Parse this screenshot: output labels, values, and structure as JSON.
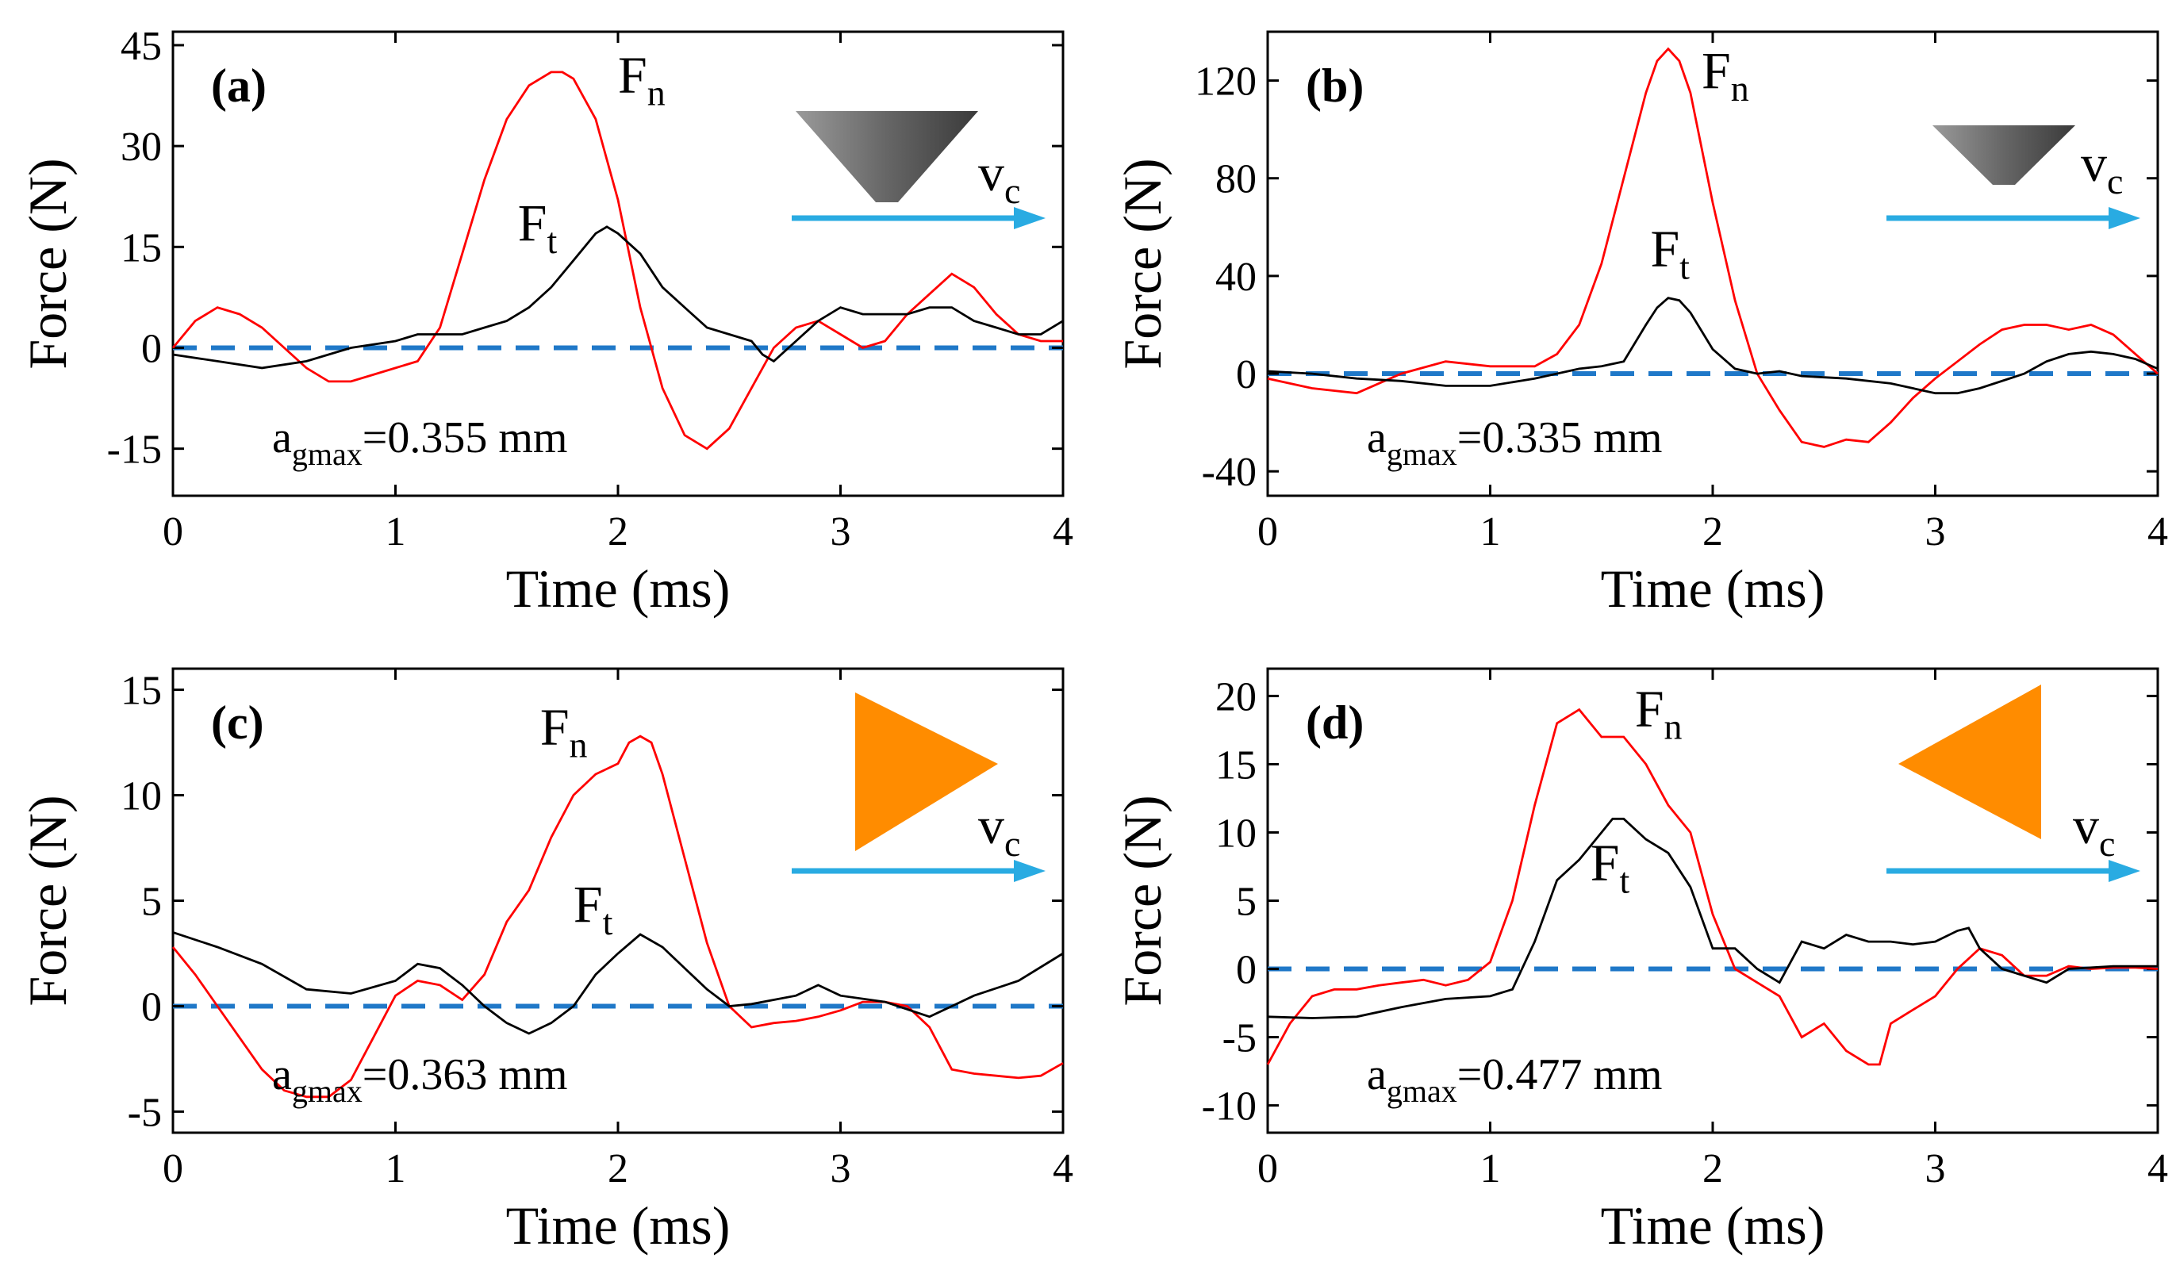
{
  "colors": {
    "fn": "#ff0000",
    "ft": "#000000",
    "zero_line": "#1f78c8",
    "arrow": "#29abe2",
    "cone": "#666666",
    "triangle": "#ff8c00"
  },
  "chart_data": [
    {
      "type": "line",
      "panel_label": "(a)",
      "xlabel": "Time (ms)",
      "ylabel": "Force (N)",
      "xlim": [
        0,
        4
      ],
      "ylim": [
        -22,
        47
      ],
      "xticks": [
        0,
        1,
        2,
        3,
        4
      ],
      "yticks": [
        -15,
        0,
        15,
        30,
        45
      ],
      "tool_icon": "cone-icon",
      "velocity_label": {
        "main": "v",
        "sub": "c"
      },
      "note": {
        "main": "a",
        "sub": "gmax",
        "rest": "=0.355 mm"
      },
      "series": [
        {
          "name": "F",
          "sub": "n",
          "color": "#ff0000",
          "x": [
            0,
            0.1,
            0.2,
            0.3,
            0.4,
            0.5,
            0.6,
            0.7,
            0.8,
            0.9,
            1.0,
            1.1,
            1.2,
            1.3,
            1.4,
            1.5,
            1.6,
            1.7,
            1.75,
            1.8,
            1.9,
            2.0,
            2.1,
            2.2,
            2.3,
            2.4,
            2.5,
            2.6,
            2.7,
            2.8,
            2.9,
            3.0,
            3.1,
            3.2,
            3.3,
            3.4,
            3.5,
            3.6,
            3.7,
            3.8,
            3.9,
            4.0
          ],
          "y": [
            0,
            4,
            6,
            5,
            3,
            0,
            -3,
            -5,
            -5,
            -4,
            -3,
            -2,
            3,
            14,
            25,
            34,
            39,
            41,
            41,
            40,
            34,
            22,
            6,
            -6,
            -13,
            -15,
            -12,
            -6,
            0,
            3,
            4,
            2,
            0,
            1,
            5,
            8,
            11,
            9,
            5,
            2,
            1,
            1
          ],
          "label_pos": [
            2.0,
            38
          ]
        },
        {
          "name": "F",
          "sub": "t",
          "color": "#000000",
          "x": [
            0,
            0.2,
            0.4,
            0.6,
            0.8,
            1.0,
            1.1,
            1.2,
            1.3,
            1.4,
            1.5,
            1.6,
            1.7,
            1.8,
            1.9,
            1.95,
            2.0,
            2.1,
            2.2,
            2.3,
            2.4,
            2.5,
            2.6,
            2.65,
            2.7,
            2.8,
            2.9,
            3.0,
            3.1,
            3.2,
            3.3,
            3.4,
            3.5,
            3.6,
            3.7,
            3.8,
            3.9,
            4.0
          ],
          "y": [
            -1,
            -2,
            -3,
            -2,
            0,
            1,
            2,
            2,
            2,
            3,
            4,
            6,
            9,
            13,
            17,
            18,
            17,
            14,
            9,
            6,
            3,
            2,
            1,
            -1,
            -2,
            1,
            4,
            6,
            5,
            5,
            5,
            6,
            6,
            4,
            3,
            2,
            2,
            4
          ],
          "label_pos": [
            1.55,
            16
          ]
        }
      ]
    },
    {
      "type": "line",
      "panel_label": "(b)",
      "xlabel": "Time (ms)",
      "ylabel": "Force (N)",
      "xlim": [
        0,
        4
      ],
      "ylim": [
        -50,
        140
      ],
      "xticks": [
        0,
        1,
        2,
        3,
        4
      ],
      "yticks": [
        -40,
        0,
        40,
        80,
        120
      ],
      "tool_icon": "cone-icon",
      "velocity_label": {
        "main": "v",
        "sub": "c"
      },
      "note": {
        "main": "a",
        "sub": "gmax",
        "rest": "=0.335 mm"
      },
      "series": [
        {
          "name": "F",
          "sub": "n",
          "color": "#ff0000",
          "x": [
            0,
            0.2,
            0.4,
            0.6,
            0.8,
            1.0,
            1.2,
            1.3,
            1.4,
            1.5,
            1.6,
            1.7,
            1.75,
            1.8,
            1.85,
            1.9,
            2.0,
            2.1,
            2.2,
            2.3,
            2.4,
            2.5,
            2.6,
            2.7,
            2.8,
            2.9,
            3.0,
            3.1,
            3.2,
            3.3,
            3.4,
            3.5,
            3.6,
            3.7,
            3.8,
            3.9,
            4.0
          ],
          "y": [
            -2,
            -6,
            -8,
            0,
            5,
            3,
            3,
            8,
            20,
            45,
            80,
            115,
            128,
            133,
            128,
            115,
            70,
            30,
            0,
            -15,
            -28,
            -30,
            -27,
            -28,
            -20,
            -10,
            -2,
            5,
            12,
            18,
            20,
            20,
            18,
            20,
            16,
            8,
            0
          ],
          "label_pos": [
            1.95,
            117
          ]
        },
        {
          "name": "F",
          "sub": "t",
          "color": "#000000",
          "x": [
            0,
            0.2,
            0.4,
            0.6,
            0.8,
            1.0,
            1.2,
            1.4,
            1.5,
            1.6,
            1.7,
            1.75,
            1.8,
            1.85,
            1.9,
            2.0,
            2.1,
            2.2,
            2.3,
            2.4,
            2.6,
            2.8,
            3.0,
            3.1,
            3.2,
            3.4,
            3.5,
            3.6,
            3.7,
            3.8,
            3.9,
            4.0
          ],
          "y": [
            1,
            0,
            -2,
            -3,
            -5,
            -5,
            -2,
            2,
            3,
            5,
            20,
            27,
            31,
            30,
            25,
            10,
            2,
            0,
            1,
            -1,
            -2,
            -4,
            -8,
            -8,
            -6,
            0,
            5,
            8,
            9,
            8,
            6,
            2
          ],
          "label_pos": [
            1.72,
            44
          ]
        }
      ]
    },
    {
      "type": "line",
      "panel_label": "(c)",
      "xlabel": "Time (ms)",
      "ylabel": "Force (N)",
      "xlim": [
        0,
        4
      ],
      "ylim": [
        -6,
        16
      ],
      "xticks": [
        0,
        1,
        2,
        3,
        4
      ],
      "yticks": [
        -5,
        0,
        5,
        10,
        15
      ],
      "tool_icon": "triangle-right-icon",
      "velocity_label": {
        "main": "v",
        "sub": "c"
      },
      "note": {
        "main": "a",
        "sub": "gmax",
        "rest": "=0.363 mm"
      },
      "series": [
        {
          "name": "F",
          "sub": "n",
          "color": "#ff0000",
          "x": [
            0,
            0.1,
            0.2,
            0.3,
            0.4,
            0.5,
            0.6,
            0.7,
            0.8,
            0.9,
            1.0,
            1.1,
            1.2,
            1.3,
            1.4,
            1.5,
            1.6,
            1.7,
            1.8,
            1.9,
            2.0,
            2.05,
            2.1,
            2.15,
            2.2,
            2.3,
            2.4,
            2.5,
            2.6,
            2.7,
            2.8,
            2.9,
            3.0,
            3.1,
            3.2,
            3.3,
            3.4,
            3.5,
            3.6,
            3.7,
            3.8,
            3.9,
            4.0
          ],
          "y": [
            2.8,
            1.5,
            0,
            -1.5,
            -3,
            -4,
            -4.3,
            -4.3,
            -3.5,
            -1.5,
            0.5,
            1.2,
            1.0,
            0.3,
            1.5,
            4,
            5.5,
            8,
            10,
            11,
            11.5,
            12.5,
            12.8,
            12.5,
            11,
            7,
            3,
            0,
            -1,
            -0.8,
            -0.7,
            -0.5,
            -0.2,
            0.2,
            0.2,
            0,
            -1,
            -3,
            -3.2,
            -3.3,
            -3.4,
            -3.3,
            -2.7
          ],
          "label_pos": [
            1.65,
            12.4
          ]
        },
        {
          "name": "F",
          "sub": "t",
          "color": "#000000",
          "x": [
            0,
            0.2,
            0.4,
            0.6,
            0.8,
            1.0,
            1.1,
            1.2,
            1.3,
            1.4,
            1.5,
            1.6,
            1.7,
            1.8,
            1.9,
            2.0,
            2.1,
            2.2,
            2.3,
            2.4,
            2.5,
            2.6,
            2.8,
            2.9,
            3.0,
            3.2,
            3.4,
            3.5,
            3.6,
            3.8,
            4.0
          ],
          "y": [
            3.5,
            2.8,
            2,
            0.8,
            0.6,
            1.2,
            2,
            1.8,
            1.0,
            0,
            -0.8,
            -1.3,
            -0.8,
            0,
            1.5,
            2.5,
            3.4,
            2.8,
            1.8,
            0.8,
            0,
            0.1,
            0.5,
            1.0,
            0.5,
            0.2,
            -0.5,
            0,
            0.5,
            1.2,
            2.5
          ],
          "label_pos": [
            1.8,
            4.0
          ]
        }
      ]
    },
    {
      "type": "line",
      "panel_label": "(d)",
      "xlabel": "Time (ms)",
      "ylabel": "Force (N)",
      "xlim": [
        0,
        4
      ],
      "ylim": [
        -12,
        22
      ],
      "xticks": [
        0,
        1,
        2,
        3,
        4
      ],
      "yticks": [
        -10,
        -5,
        0,
        5,
        10,
        15,
        20
      ],
      "tool_icon": "triangle-left-icon",
      "velocity_label": {
        "main": "v",
        "sub": "c"
      },
      "note": {
        "main": "a",
        "sub": "gmax",
        "rest": "=0.477 mm"
      },
      "series": [
        {
          "name": "F",
          "sub": "n",
          "color": "#ff0000",
          "x": [
            0,
            0.1,
            0.2,
            0.3,
            0.4,
            0.5,
            0.6,
            0.7,
            0.8,
            0.9,
            1.0,
            1.1,
            1.2,
            1.3,
            1.4,
            1.5,
            1.6,
            1.7,
            1.8,
            1.9,
            2.0,
            2.1,
            2.2,
            2.3,
            2.4,
            2.5,
            2.6,
            2.7,
            2.75,
            2.8,
            2.9,
            3.0,
            3.1,
            3.2,
            3.3,
            3.4,
            3.5,
            3.6,
            3.7,
            3.8,
            3.9,
            4.0
          ],
          "y": [
            -7,
            -4,
            -2,
            -1.5,
            -1.5,
            -1.2,
            -1,
            -0.8,
            -1.2,
            -0.8,
            0.5,
            5,
            12,
            18,
            19,
            17,
            17,
            15,
            12,
            10,
            4,
            0,
            -1,
            -2,
            -5,
            -4,
            -6,
            -7,
            -7,
            -4,
            -3,
            -2,
            0,
            1.5,
            1,
            -0.5,
            -0.5,
            0.2,
            0,
            0.1,
            0.1,
            0
          ],
          "label_pos": [
            1.65,
            17.8
          ]
        },
        {
          "name": "F",
          "sub": "t",
          "color": "#000000",
          "x": [
            0,
            0.2,
            0.4,
            0.6,
            0.8,
            1.0,
            1.1,
            1.2,
            1.3,
            1.4,
            1.5,
            1.55,
            1.6,
            1.7,
            1.8,
            1.9,
            2.0,
            2.1,
            2.2,
            2.3,
            2.4,
            2.5,
            2.6,
            2.7,
            2.8,
            2.9,
            3.0,
            3.1,
            3.15,
            3.2,
            3.3,
            3.4,
            3.5,
            3.6,
            3.8,
            4.0
          ],
          "y": [
            -3.5,
            -3.6,
            -3.5,
            -2.8,
            -2.2,
            -2,
            -1.5,
            2,
            6.5,
            8,
            10,
            11,
            11,
            9.5,
            8.5,
            6,
            1.5,
            1.5,
            0,
            -1,
            2,
            1.5,
            2.5,
            2,
            2,
            1.8,
            2,
            2.8,
            3,
            1.5,
            0,
            -0.5,
            -1,
            0,
            0.2,
            0.2
          ],
          "label_pos": [
            1.45,
            6.5
          ]
        }
      ]
    }
  ]
}
